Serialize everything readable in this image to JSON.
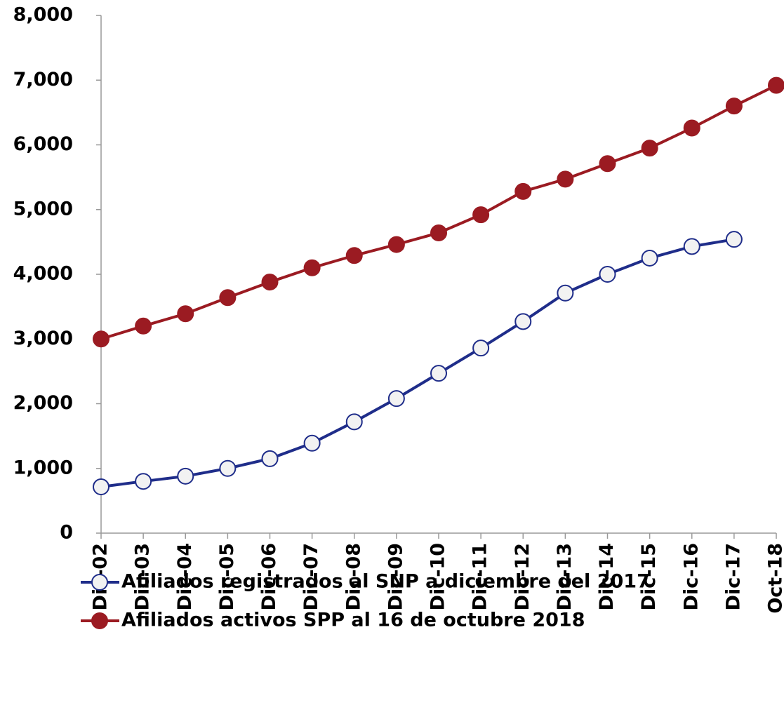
{
  "chart_data": {
    "type": "line",
    "categories": [
      "Dic-02",
      "Dic-03",
      "Dic-04",
      "Dic-05",
      "Dic-06",
      "Dic-07",
      "Dic-08",
      "Dic-09",
      "Dic-10",
      "Dic-11",
      "Dic-12",
      "Dic-13",
      "Dic-14",
      "Dic-15",
      "Dic-16",
      "Dic-17",
      "Oct-18"
    ],
    "series": [
      {
        "name": "Afiliados registrados al SNP a diciembre del 2017",
        "color": "#1f2d8a",
        "marker_fill": "#f2f2f2",
        "values": [
          715,
          800,
          880,
          1000,
          1150,
          1390,
          1720,
          2080,
          2470,
          2860,
          3270,
          3710,
          4000,
          4250,
          4430,
          4540,
          null
        ]
      },
      {
        "name": "Afiliados activos SPP al 16 de octubre 2018",
        "color": "#9b1b22",
        "marker_fill": "#9b1b22",
        "values": [
          3000,
          3200,
          3390,
          3640,
          3880,
          4100,
          4290,
          4460,
          4640,
          4920,
          5280,
          5470,
          5710,
          5950,
          6260,
          6600,
          6920
        ]
      }
    ],
    "ylim": [
      0,
      8000
    ],
    "yticks": [
      0,
      {
        "value": 1000,
        "label": "1,000"
      },
      {
        "value": 2000,
        "label": "2,000"
      },
      {
        "value": 3000,
        "label": "3,000"
      },
      {
        "value": 4000,
        "label": "4,000"
      },
      {
        "value": 5000,
        "label": "5,000"
      },
      {
        "value": 6000,
        "label": "6,000"
      },
      {
        "value": 7000,
        "label": "7,000"
      },
      {
        "value": 8000,
        "label": "8,000"
      }
    ],
    "grid": false
  }
}
